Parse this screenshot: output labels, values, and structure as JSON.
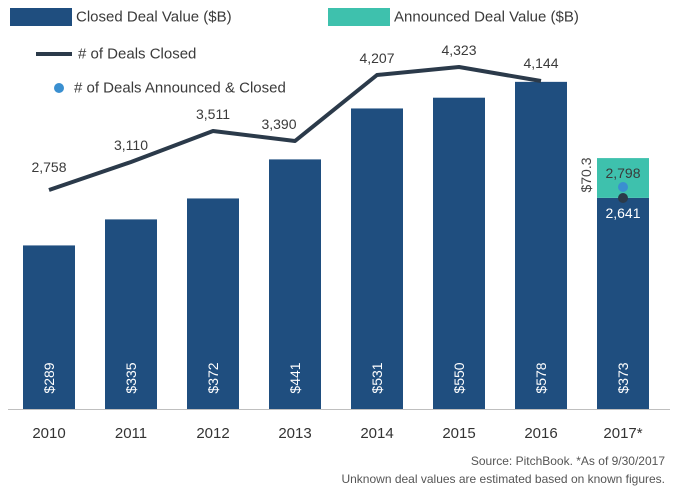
{
  "chart_data": {
    "type": "bar",
    "categories": [
      "2010",
      "2011",
      "2012",
      "2013",
      "2014",
      "2015",
      "2016",
      "2017*"
    ],
    "series": [
      {
        "name": "Closed Deal Value ($B)",
        "type": "bar",
        "color": "#1f4e7f",
        "values": [
          289,
          335,
          372,
          441,
          531,
          550,
          578,
          373
        ]
      },
      {
        "name": "Announced Deal Value ($B)",
        "type": "bar-stacked",
        "color": "#3ec1ad",
        "values": [
          null,
          null,
          null,
          null,
          null,
          null,
          null,
          70.3
        ]
      },
      {
        "name": "# of Deals Closed",
        "type": "line",
        "color": "#2b3a4a",
        "values": [
          2758,
          3110,
          3511,
          3390,
          4207,
          4323,
          4144,
          2641
        ]
      },
      {
        "name": "# of Deals Announced & Closed",
        "type": "point",
        "color": "#3a8fd0",
        "values": [
          null,
          null,
          null,
          null,
          null,
          null,
          null,
          2798
        ]
      }
    ],
    "bar_labels": [
      "$289",
      "$335",
      "$372",
      "$441",
      "$531",
      "$550",
      "$578",
      "$373"
    ],
    "announced_label": "$70.3",
    "line_labels": [
      "2,758",
      "3,110",
      "3,511",
      "3,390",
      "4,207",
      "4,323",
      "4,144",
      "2,641"
    ],
    "point_label": "2,798",
    "legend_position": "top-left",
    "grid": false
  },
  "footer": {
    "source": "Source: PitchBook. *As of 9/30/2017",
    "note": "Unknown deal values are estimated based on known figures."
  }
}
